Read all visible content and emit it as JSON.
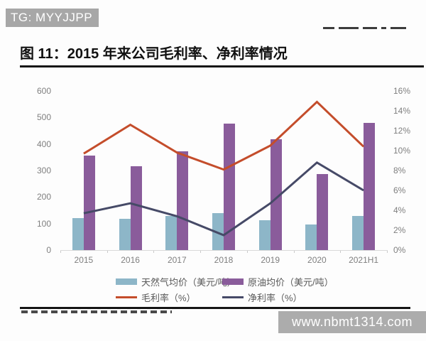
{
  "header": {
    "badge": "TG: MYYJJPP"
  },
  "figure": {
    "title": "图 11：2015 年来公司毛利率、净利率情况"
  },
  "watermark": {
    "text": "www.nbmt1314.com"
  },
  "chart_data": {
    "type": "bar",
    "subtype": "bar+line dual-axis",
    "title": "2015 年来公司毛利率、净利率情况",
    "categories": [
      "2015",
      "2016",
      "2017",
      "2018",
      "2019",
      "2020",
      "2021H1"
    ],
    "series": [
      {
        "id": "gas-price",
        "name": "天然气均价（美元/吨）",
        "type": "bar",
        "axis": "left",
        "color": "#8db6c8",
        "values": [
          121,
          117,
          128,
          140,
          112,
          96,
          130
        ]
      },
      {
        "id": "oil-price",
        "name": "原油均价（美元/吨）",
        "type": "bar",
        "axis": "left",
        "color": "#8a5c9b",
        "values": [
          356,
          316,
          373,
          477,
          418,
          287,
          480
        ]
      },
      {
        "id": "gross-margin",
        "name": "毛利率（%）",
        "type": "line",
        "axis": "right",
        "color": "#c44d2b",
        "values": [
          9.7,
          12.6,
          9.8,
          8.1,
          10.5,
          14.9,
          10.4
        ]
      },
      {
        "id": "net-margin",
        "name": "净利率（%）",
        "type": "line",
        "axis": "right",
        "color": "#464a67",
        "values": [
          3.7,
          4.7,
          3.4,
          1.5,
          4.7,
          8.8,
          6.0
        ]
      }
    ],
    "left_axis": {
      "min": 0,
      "max": 600,
      "ticks": [
        "0",
        "100",
        "200",
        "300",
        "400",
        "500",
        "600"
      ]
    },
    "right_axis": {
      "min": 0,
      "max": 16,
      "ticks": [
        "0%",
        "2%",
        "4%",
        "6%",
        "8%",
        "10%",
        "12%",
        "14%",
        "16%"
      ]
    },
    "grid": false,
    "legend_position": "bottom"
  }
}
